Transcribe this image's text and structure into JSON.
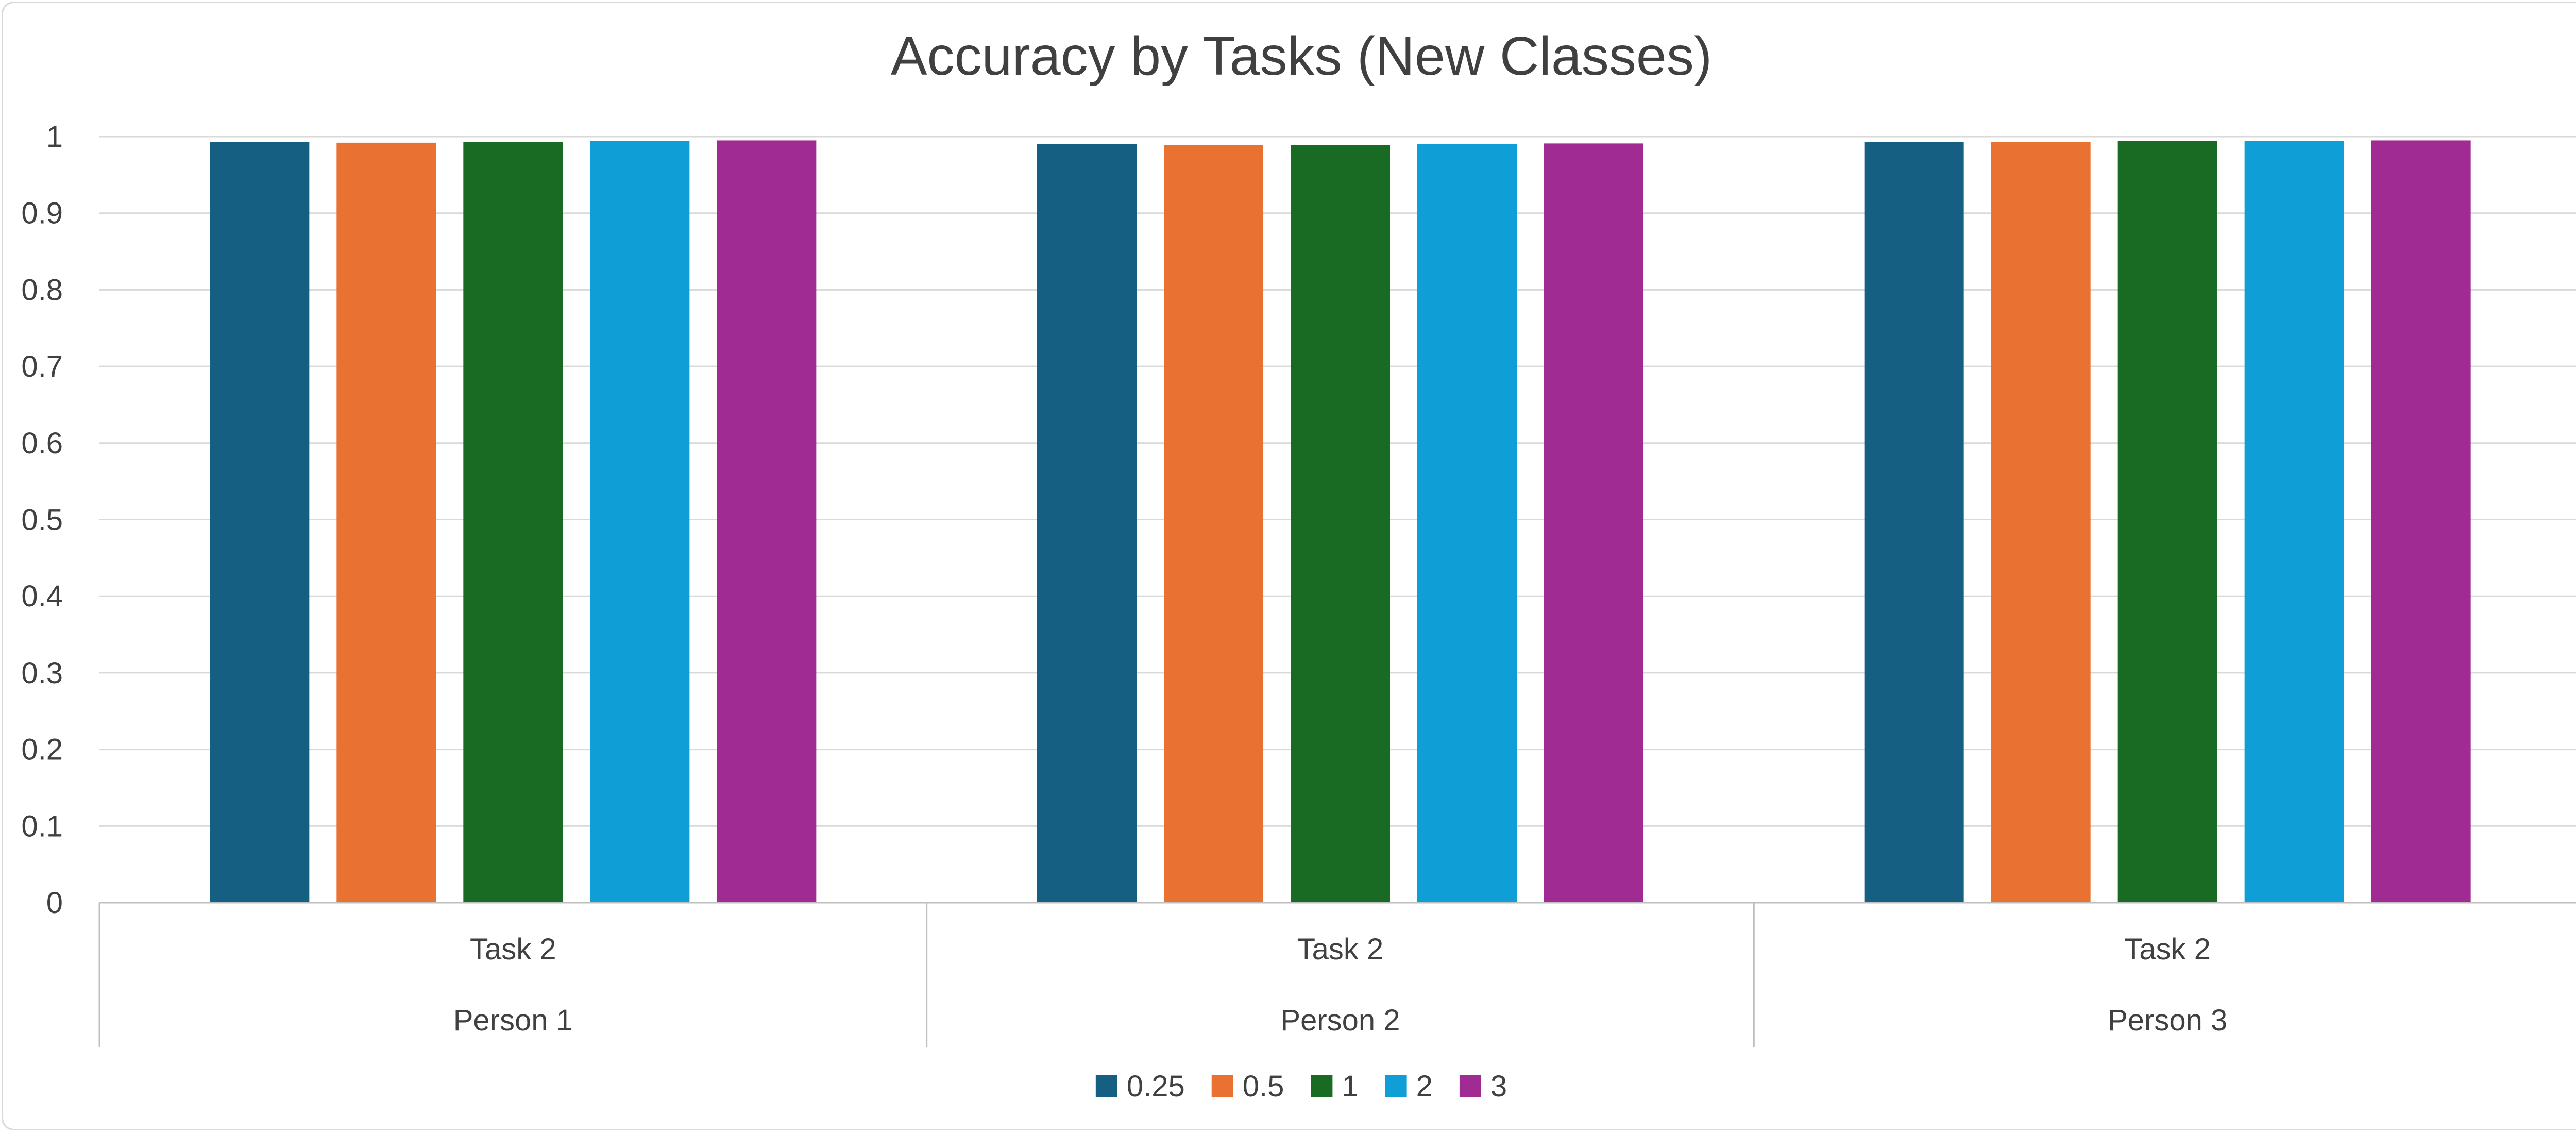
{
  "chart_data": {
    "type": "bar",
    "title": "Accuracy by Tasks (New Classes)",
    "xlabel": "",
    "ylabel": "",
    "ylim": [
      0,
      1
    ],
    "ytick_step": 0.1,
    "yticks": [
      "0",
      "0.1",
      "0.2",
      "0.3",
      "0.4",
      "0.5",
      "0.6",
      "0.7",
      "0.8",
      "0.9",
      "1"
    ],
    "grid": true,
    "legend_position": "bottom",
    "categories": [
      {
        "inner": "Task 2",
        "outer": "Person 1"
      },
      {
        "inner": "Task 2",
        "outer": "Person 2"
      },
      {
        "inner": "Task 2",
        "outer": "Person 3"
      }
    ],
    "series": [
      {
        "name": "0.25",
        "color": "#156082",
        "values": [
          0.993,
          0.99,
          0.993
        ]
      },
      {
        "name": "0.5",
        "color": "#E97132",
        "values": [
          0.992,
          0.989,
          0.993
        ]
      },
      {
        "name": "1",
        "color": "#196B24",
        "values": [
          0.993,
          0.989,
          0.994
        ]
      },
      {
        "name": "2",
        "color": "#0F9ED5",
        "values": [
          0.994,
          0.99,
          0.994
        ]
      },
      {
        "name": "3",
        "color": "#A02B93",
        "values": [
          0.995,
          0.991,
          0.995
        ]
      }
    ],
    "colors": {
      "gridline": "#d9d9d9",
      "axis_line": "#bfbfbf",
      "text": "#404040"
    }
  }
}
